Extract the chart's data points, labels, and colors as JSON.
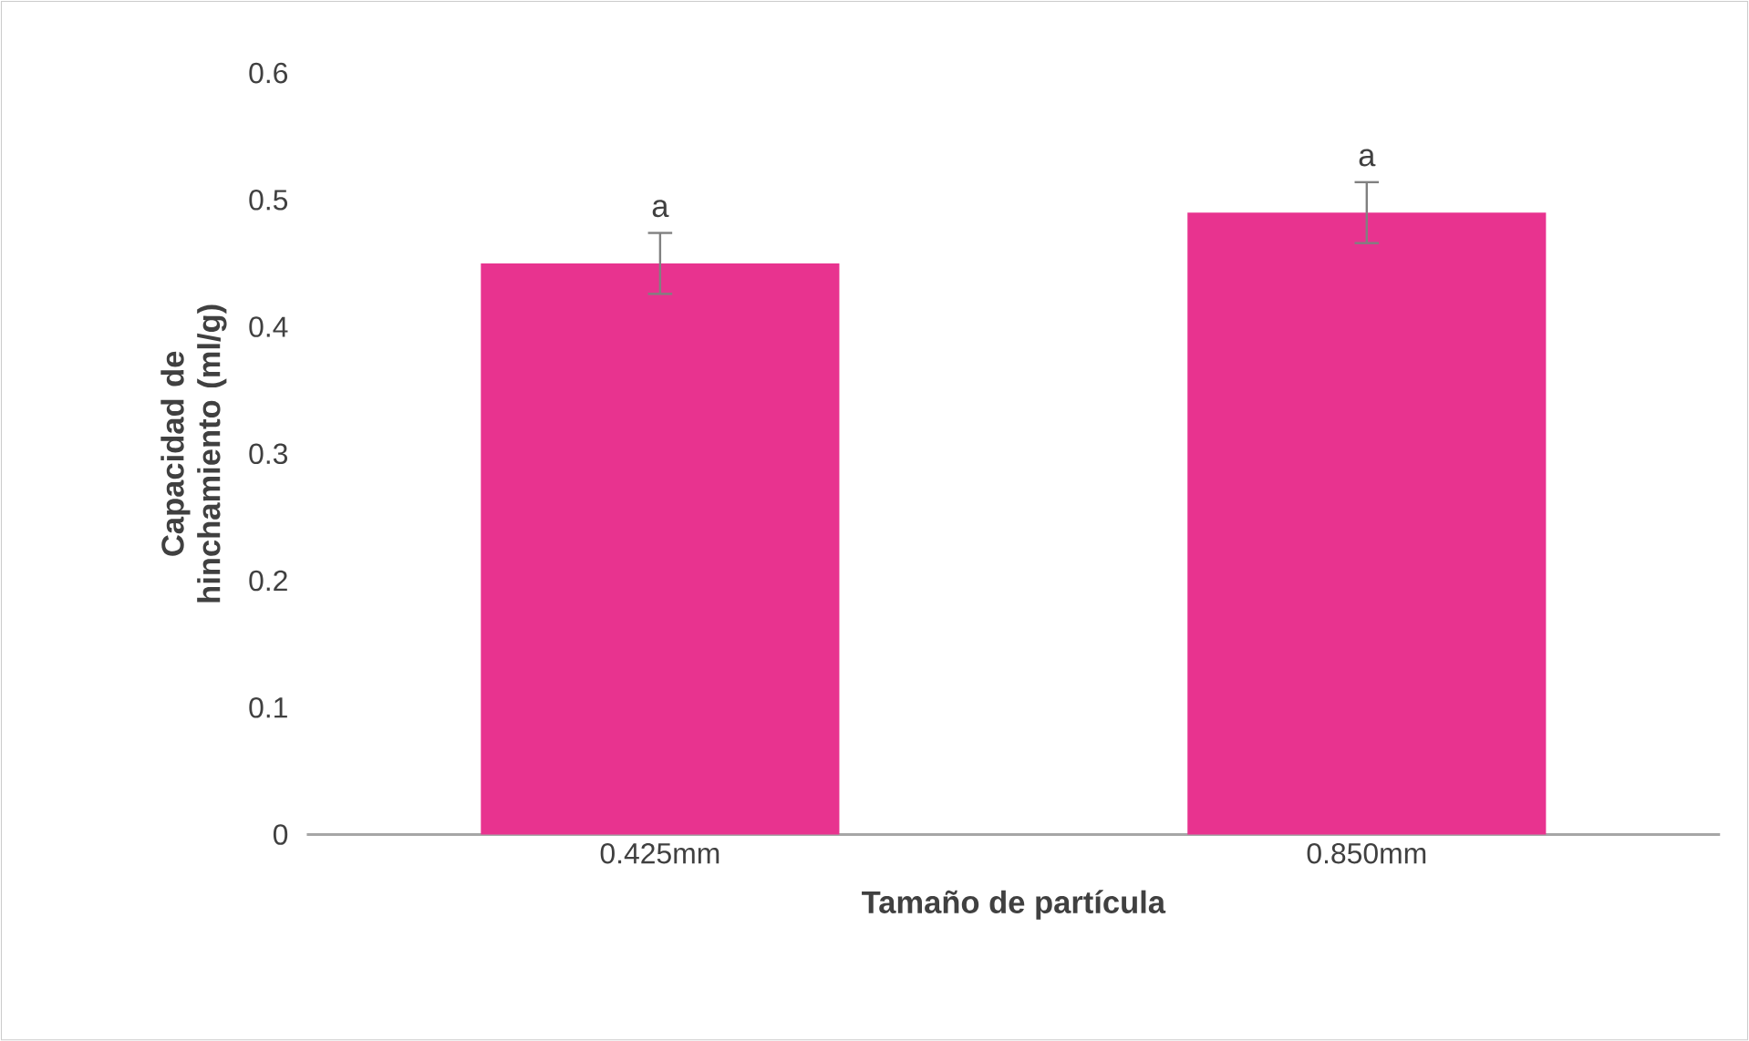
{
  "chart_data": {
    "type": "bar",
    "xlabel": "Tamaño de partícula",
    "ylabel": "Capacidad de hinchamiento (ml/g)",
    "categories": [
      "0.425mm",
      "0.850mm"
    ],
    "values": [
      0.45,
      0.49
    ],
    "errors": [
      0.024,
      0.024
    ],
    "color": "#e8338f",
    "ylim": [
      0,
      0.6
    ],
    "yticks": [
      0,
      0.1,
      0.2,
      0.3,
      0.4,
      0.5,
      0.6
    ],
    "annotations": [
      "a",
      "a"
    ]
  }
}
